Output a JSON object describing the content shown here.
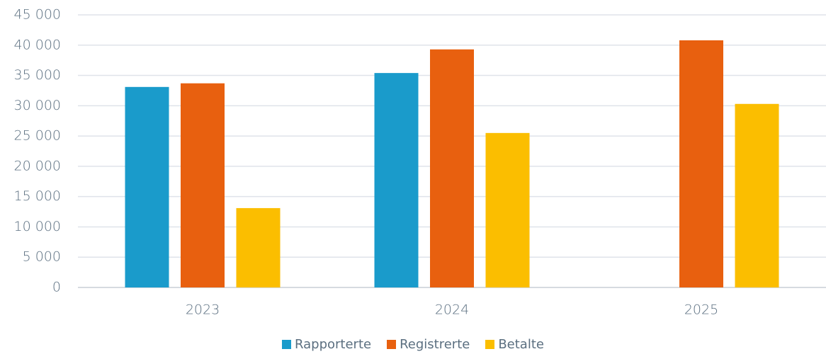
{
  "chart_data": {
    "type": "bar",
    "categories": [
      "2023",
      "2024",
      "2025"
    ],
    "series": [
      {
        "name": "Rapporterte",
        "color": "#1a9bcb",
        "values": [
          33100,
          35400,
          null
        ]
      },
      {
        "name": "Registrerte",
        "color": "#e8600f",
        "values": [
          33700,
          39300,
          40800
        ]
      },
      {
        "name": "Betalte",
        "color": "#fbbe00",
        "values": [
          13100,
          25500,
          30300
        ]
      }
    ],
    "ylim": [
      0,
      45000
    ],
    "yticks": [
      0,
      {
        "value": 5000,
        "label": "5 000"
      },
      {
        "value": 10000,
        "label": "10 000"
      },
      {
        "value": 15000,
        "label": "15 000"
      },
      {
        "value": 20000,
        "label": "20 000"
      },
      {
        "value": 25000,
        "label": "25 000"
      },
      {
        "value": 30000,
        "label": "30 000"
      },
      {
        "value": 35000,
        "label": "35 000"
      },
      {
        "value": 40000,
        "label": "40 000"
      },
      {
        "value": 45000,
        "label": "45 000"
      }
    ],
    "grid": true,
    "legend": "bottom"
  }
}
